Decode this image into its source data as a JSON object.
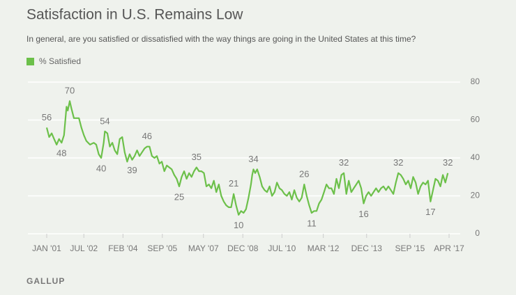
{
  "chart_data": {
    "type": "line",
    "title": "Satisfaction in U.S. Remains Low",
    "subtitle": "In general, are you satisfied or dissatisfied with the way things are going in the United States at this time?",
    "source": "GALLUP",
    "legend": "top-left",
    "grid": true,
    "xlim": [
      2000.24,
      2017.7
    ],
    "ylim": [
      0,
      80
    ],
    "yticks": [
      0,
      20,
      40,
      60,
      80
    ],
    "xticks": [
      {
        "value": 2001.0,
        "label": "JAN '01"
      },
      {
        "value": 2002.5,
        "label": "JUL '02"
      },
      {
        "value": 2004.08,
        "label": "FEB '04"
      },
      {
        "value": 2005.67,
        "label": "SEP '05"
      },
      {
        "value": 2007.33,
        "label": "MAY '07"
      },
      {
        "value": 2008.92,
        "label": "DEC '08"
      },
      {
        "value": 2010.5,
        "label": "JUL '10"
      },
      {
        "value": 2012.17,
        "label": "MAR '12"
      },
      {
        "value": 2013.92,
        "label": "DEC '13"
      },
      {
        "value": 2015.67,
        "label": "SEP '15"
      },
      {
        "value": 2017.25,
        "label": "APR '17"
      }
    ],
    "x": [
      2001.0,
      2001.1,
      2001.2,
      2001.3,
      2001.4,
      2001.5,
      2001.6,
      2001.7,
      2001.8,
      2001.85,
      2001.93,
      2002.0,
      2002.1,
      2002.3,
      2002.4,
      2002.5,
      2002.6,
      2002.75,
      2002.9,
      2003.0,
      2003.1,
      2003.2,
      2003.3,
      2003.35,
      2003.45,
      2003.55,
      2003.65,
      2003.75,
      2003.85,
      2003.95,
      2004.05,
      2004.15,
      2004.25,
      2004.35,
      2004.45,
      2004.55,
      2004.65,
      2004.75,
      2004.85,
      2004.95,
      2005.05,
      2005.15,
      2005.25,
      2005.35,
      2005.45,
      2005.55,
      2005.65,
      2005.75,
      2005.85,
      2005.95,
      2006.05,
      2006.15,
      2006.25,
      2006.35,
      2006.45,
      2006.55,
      2006.65,
      2006.75,
      2006.85,
      2006.95,
      2007.05,
      2007.15,
      2007.25,
      2007.35,
      2007.45,
      2007.55,
      2007.65,
      2007.75,
      2007.85,
      2007.95,
      2008.05,
      2008.15,
      2008.25,
      2008.35,
      2008.45,
      2008.55,
      2008.65,
      2008.75,
      2008.85,
      2008.95,
      2009.05,
      2009.15,
      2009.25,
      2009.3,
      2009.35,
      2009.42,
      2009.5,
      2009.6,
      2009.7,
      2009.8,
      2009.9,
      2010.0,
      2010.1,
      2010.2,
      2010.3,
      2010.4,
      2010.5,
      2010.6,
      2010.7,
      2010.8,
      2010.9,
      2011.0,
      2011.1,
      2011.2,
      2011.3,
      2011.4,
      2011.5,
      2011.6,
      2011.7,
      2011.8,
      2011.9,
      2012.0,
      2012.1,
      2012.2,
      2012.3,
      2012.4,
      2012.5,
      2012.6,
      2012.7,
      2012.8,
      2012.9,
      2013.0,
      2013.1,
      2013.2,
      2013.3,
      2013.4,
      2013.5,
      2013.6,
      2013.7,
      2013.8,
      2013.9,
      2014.0,
      2014.1,
      2014.2,
      2014.3,
      2014.4,
      2014.5,
      2014.6,
      2014.7,
      2014.8,
      2014.9,
      2015.0,
      2015.1,
      2015.2,
      2015.3,
      2015.4,
      2015.5,
      2015.6,
      2015.7,
      2015.8,
      2015.9,
      2016.0,
      2016.1,
      2016.2,
      2016.3,
      2016.4,
      2016.5,
      2016.7,
      2016.8,
      2016.9,
      2017.0,
      2017.1,
      2017.2
    ],
    "series": [
      {
        "name": "% Satisfied",
        "color": "#6cc04a",
        "values": [
          56,
          51,
          53,
          50,
          47,
          50,
          48,
          52,
          67,
          65,
          70,
          66,
          61,
          61,
          56,
          52,
          49,
          47,
          48,
          47,
          42,
          40,
          48,
          54,
          53,
          46,
          48,
          44,
          42,
          50,
          51,
          43,
          38,
          42,
          39,
          41,
          44,
          41,
          43,
          45,
          46,
          46,
          41,
          40,
          41,
          37,
          38,
          33,
          36,
          35,
          34,
          31,
          29,
          25,
          30,
          33,
          29,
          32,
          30,
          33,
          35,
          33,
          33,
          32,
          25,
          26,
          24,
          28,
          22,
          26,
          20,
          17,
          15,
          14,
          14,
          21,
          15,
          10,
          12,
          11,
          13,
          19,
          26,
          31,
          34,
          32,
          34,
          30,
          25,
          23,
          22,
          25,
          20,
          22,
          27,
          24,
          23,
          21,
          20,
          22,
          18,
          23,
          19,
          17,
          19,
          26,
          20,
          15,
          11,
          12,
          12,
          16,
          18,
          22,
          26,
          24,
          24,
          21,
          29,
          24,
          31,
          32,
          21,
          28,
          22,
          24,
          26,
          28,
          24,
          16,
          20,
          22,
          20,
          22,
          24,
          22,
          24,
          25,
          23,
          25,
          23,
          21,
          27,
          32,
          31,
          29,
          26,
          28,
          24,
          30,
          27,
          21,
          25,
          27,
          26,
          28,
          17,
          29,
          28,
          25,
          31,
          27,
          32
        ],
        "value_labels": [
          "56",
          null,
          null,
          null,
          null,
          null,
          "48",
          null,
          null,
          null,
          "70",
          null,
          null,
          null,
          null,
          null,
          null,
          null,
          null,
          null,
          null,
          "40",
          null,
          "54",
          null,
          null,
          null,
          null,
          null,
          null,
          null,
          null,
          null,
          null,
          "39",
          null,
          null,
          null,
          null,
          null,
          "46",
          null,
          null,
          null,
          null,
          null,
          null,
          null,
          null,
          null,
          null,
          null,
          null,
          "25",
          null,
          null,
          null,
          null,
          null,
          null,
          "35",
          null,
          null,
          null,
          null,
          null,
          null,
          null,
          null,
          null,
          null,
          null,
          null,
          null,
          null,
          "21",
          null,
          "10",
          null,
          null,
          null,
          null,
          null,
          null,
          "34",
          null,
          null,
          null,
          null,
          null,
          null,
          null,
          null,
          null,
          null,
          null,
          null,
          null,
          null,
          null,
          null,
          null,
          null,
          null,
          null,
          "26",
          null,
          null,
          "11",
          null,
          null,
          null,
          null,
          null,
          null,
          null,
          null,
          null,
          null,
          null,
          null,
          "32",
          null,
          null,
          null,
          null,
          null,
          null,
          null,
          "16",
          null,
          null,
          null,
          null,
          null,
          null,
          null,
          null,
          null,
          null,
          null,
          null,
          null,
          "32",
          null,
          null,
          null,
          null,
          null,
          null,
          null,
          null,
          null,
          null,
          null,
          null,
          "17",
          null,
          null,
          null,
          null,
          null,
          "32"
        ]
      }
    ]
  }
}
